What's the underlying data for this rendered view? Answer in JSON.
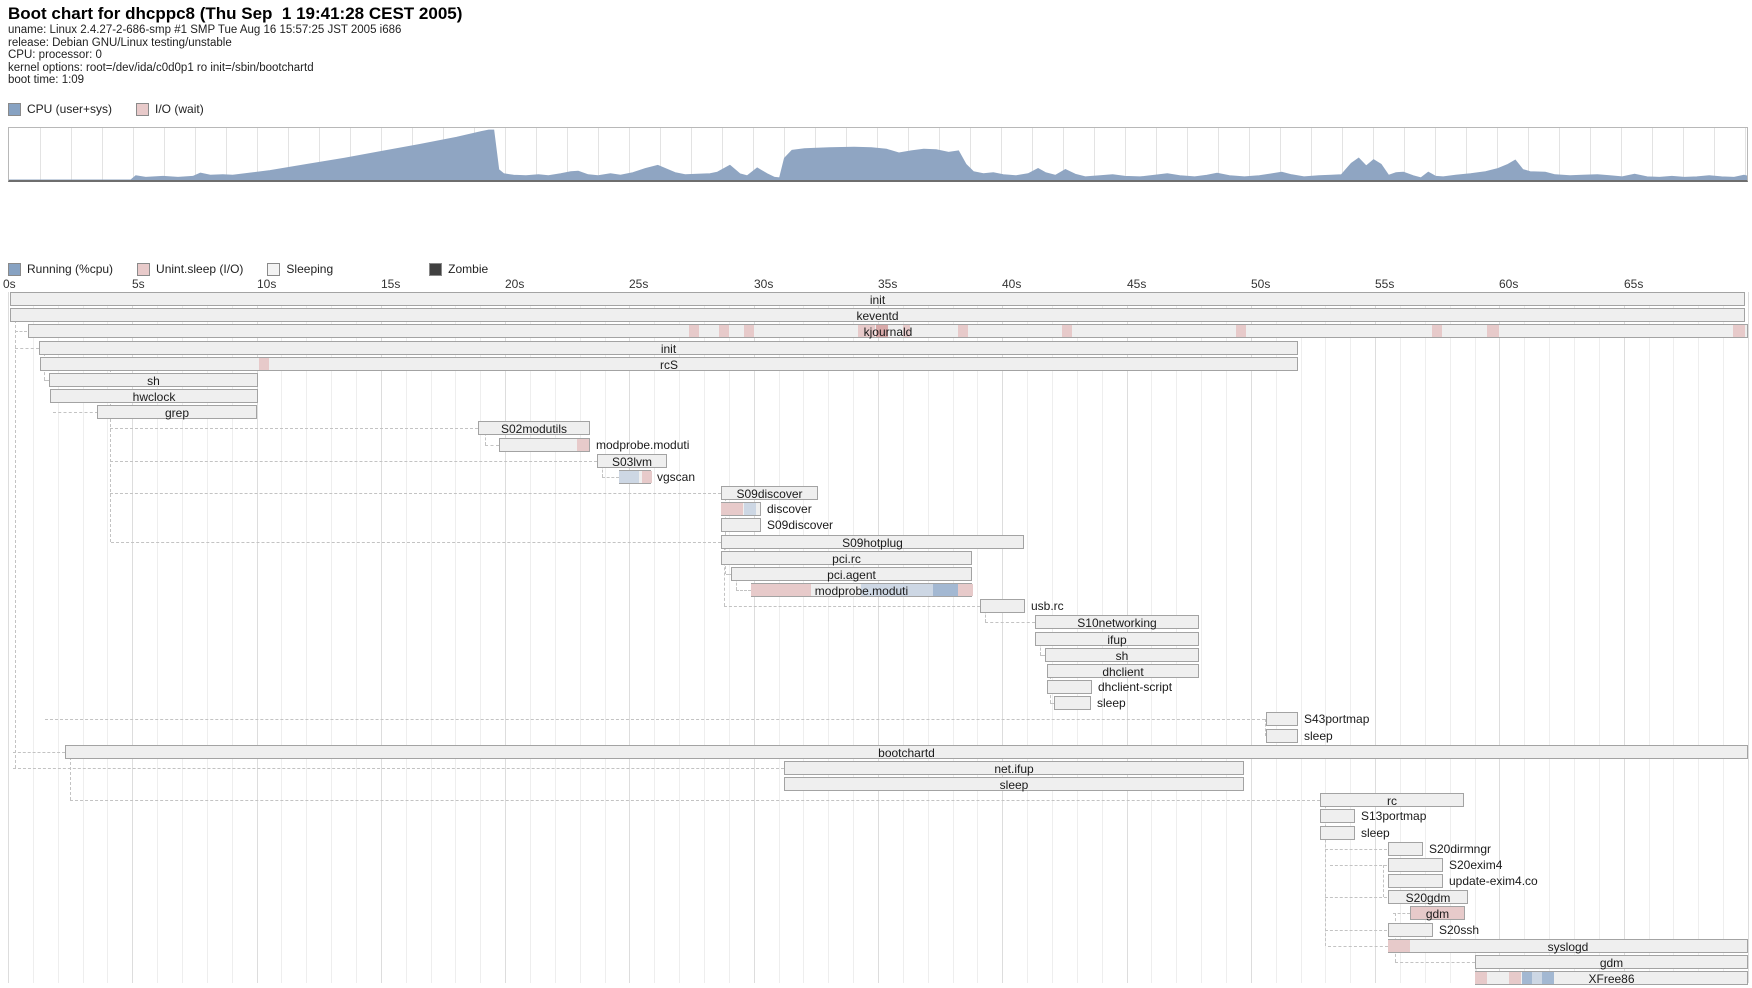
{
  "header": {
    "title": "Boot chart for dhcppc8 (Thu Sep  1 19:41:28 CEST 2005)",
    "info_lines": [
      "uname: Linux 2.4.27-2-686-smp #1 SMP Tue Aug 16 15:57:25 JST 2005 i686",
      "release: Debian GNU/Linux testing/unstable",
      "CPU: processor: 0",
      "kernel options: root=/dev/ida/c0d0p1 ro init=/sbin/bootchartd",
      "boot time: 1:09"
    ]
  },
  "colors": {
    "cpu_area": "#8fa5c2",
    "io": "#e7caca",
    "io_dark": "#d8a9a9",
    "run": "#a3b8d2",
    "run_light": "#cdd7e4",
    "bar_base": "#efefef",
    "bar_border": "#a3a3a3",
    "legend_running": "#87a2c2",
    "legend_unint": "#e8caca",
    "legend_sleeping": "#f3f3f3",
    "legend_zombie": "#404040"
  },
  "chart_data": {
    "type": "area+gantt",
    "cpu": {
      "legend": [
        {
          "label": "CPU (user+sys)",
          "color_key": "legend_running"
        },
        {
          "label": "I/O (wait)",
          "color_key": "legend_unint"
        }
      ],
      "x_range_s": [
        0,
        70
      ],
      "y_range_pct": [
        0,
        100
      ],
      "points_t_pct": [
        [
          0,
          0
        ],
        [
          4.9,
          0
        ],
        [
          5.1,
          8
        ],
        [
          5.5,
          5
        ],
        [
          6.2,
          7
        ],
        [
          6.8,
          5
        ],
        [
          7.4,
          7
        ],
        [
          7.7,
          13
        ],
        [
          8.1,
          9
        ],
        [
          8.6,
          10
        ],
        [
          9,
          9
        ],
        [
          10.5,
          18
        ],
        [
          12,
          30
        ],
        [
          13.5,
          42
        ],
        [
          15,
          55
        ],
        [
          16.5,
          68
        ],
        [
          18,
          82
        ],
        [
          19,
          93
        ],
        [
          19.3,
          96
        ],
        [
          19.5,
          96
        ],
        [
          19.7,
          20
        ],
        [
          19.9,
          12
        ],
        [
          20.3,
          9
        ],
        [
          20.8,
          8
        ],
        [
          21.3,
          10
        ],
        [
          21.7,
          8
        ],
        [
          22.2,
          12
        ],
        [
          22.6,
          16
        ],
        [
          22.9,
          17
        ],
        [
          23.3,
          10
        ],
        [
          23.7,
          8
        ],
        [
          24.2,
          12
        ],
        [
          24.6,
          9
        ],
        [
          25.1,
          14
        ],
        [
          25.6,
          22
        ],
        [
          26.1,
          28
        ],
        [
          26.5,
          20
        ],
        [
          26.8,
          14
        ],
        [
          27.2,
          10
        ],
        [
          27.7,
          11
        ],
        [
          28.2,
          12
        ],
        [
          28.5,
          15
        ],
        [
          29,
          28
        ],
        [
          29.4,
          12
        ],
        [
          29.7,
          8
        ],
        [
          30.1,
          23
        ],
        [
          30.5,
          12
        ],
        [
          30.8,
          5
        ],
        [
          31,
          4
        ],
        [
          31.2,
          42
        ],
        [
          31.5,
          57
        ],
        [
          32,
          60
        ],
        [
          33,
          62
        ],
        [
          34,
          63
        ],
        [
          34.7,
          62
        ],
        [
          35.3,
          59
        ],
        [
          35.8,
          52
        ],
        [
          36.3,
          56
        ],
        [
          36.8,
          59
        ],
        [
          37.3,
          58
        ],
        [
          37.8,
          53
        ],
        [
          38.2,
          56
        ],
        [
          38.5,
          30
        ],
        [
          38.8,
          16
        ],
        [
          39.2,
          12
        ],
        [
          39.6,
          14
        ],
        [
          40,
          10
        ],
        [
          40.5,
          8
        ],
        [
          41,
          12
        ],
        [
          41.4,
          22
        ],
        [
          41.7,
          14
        ],
        [
          42.1,
          9
        ],
        [
          42.5,
          20
        ],
        [
          42.9,
          11
        ],
        [
          43.3,
          6
        ],
        [
          43.9,
          8
        ],
        [
          44.4,
          10
        ],
        [
          44.9,
          7
        ],
        [
          45.5,
          6
        ],
        [
          46.1,
          9
        ],
        [
          46.6,
          12
        ],
        [
          47.1,
          8
        ],
        [
          47.7,
          6
        ],
        [
          48.2,
          9
        ],
        [
          48.6,
          13
        ],
        [
          49.1,
          8
        ],
        [
          49.7,
          6
        ],
        [
          50.3,
          8
        ],
        [
          50.7,
          11
        ],
        [
          51.2,
          15
        ],
        [
          51.6,
          10
        ],
        [
          52.1,
          6
        ],
        [
          52.7,
          8
        ],
        [
          53.2,
          9
        ],
        [
          53.6,
          10
        ],
        [
          54,
          32
        ],
        [
          54.3,
          42
        ],
        [
          54.6,
          27
        ],
        [
          54.9,
          39
        ],
        [
          55.2,
          30
        ],
        [
          55.5,
          9
        ],
        [
          55.8,
          14
        ],
        [
          56.1,
          15
        ],
        [
          56.5,
          8
        ],
        [
          56.8,
          4
        ],
        [
          57.1,
          15
        ],
        [
          57.4,
          7
        ],
        [
          57.7,
          6
        ],
        [
          58.2,
          9
        ],
        [
          58.8,
          12
        ],
        [
          59.4,
          16
        ],
        [
          59.9,
          22
        ],
        [
          60.3,
          30
        ],
        [
          60.6,
          38
        ],
        [
          60.9,
          20
        ],
        [
          61.2,
          16
        ],
        [
          61.8,
          15
        ],
        [
          62.2,
          10
        ],
        [
          62.8,
          8
        ],
        [
          63.3,
          9
        ],
        [
          63.9,
          10
        ],
        [
          64.4,
          8
        ],
        [
          64.9,
          6
        ],
        [
          65.4,
          11
        ],
        [
          65.9,
          6
        ],
        [
          66.4,
          5
        ],
        [
          66.9,
          7
        ],
        [
          67.4,
          5
        ],
        [
          67.9,
          6
        ],
        [
          68.4,
          8
        ],
        [
          68.9,
          6
        ],
        [
          69.4,
          5
        ],
        [
          69.8,
          9
        ],
        [
          70,
          7
        ]
      ]
    },
    "gantt": {
      "legend": [
        {
          "label": "Running (%cpu)",
          "color_key": "legend_running"
        },
        {
          "label": "Unint.sleep (I/O)",
          "color_key": "legend_unint"
        },
        {
          "label": "Sleeping",
          "color_key": "legend_sleeping"
        },
        {
          "label": "Zombie",
          "color_key": "legend_zombie"
        }
      ],
      "ticks": [
        {
          "t": 0,
          "label": "0s"
        },
        {
          "t": 5,
          "label": "5s"
        },
        {
          "t": 10,
          "label": "10s"
        },
        {
          "t": 15,
          "label": "15s"
        },
        {
          "t": 20,
          "label": "20s"
        },
        {
          "t": 25,
          "label": "25s"
        },
        {
          "t": 30,
          "label": "30s"
        },
        {
          "t": 35,
          "label": "35s"
        },
        {
          "t": 40,
          "label": "40s"
        },
        {
          "t": 45,
          "label": "45s"
        },
        {
          "t": 50,
          "label": "50s"
        },
        {
          "t": 55,
          "label": "55s"
        },
        {
          "t": 60,
          "label": "60s"
        },
        {
          "t": 65,
          "label": "65s"
        }
      ],
      "rows": [
        {
          "name": "init",
          "start": 0.1,
          "end": 69.9,
          "lp": "c",
          "segs": [],
          "cf": null
        },
        {
          "name": "keventd",
          "start": 0.1,
          "end": 69.9,
          "lp": "c",
          "segs": [],
          "cf": null
        },
        {
          "name": "kjournald",
          "start": 0.8,
          "end": 70,
          "lp": "c",
          "cf": 0.3,
          "segs": [
            [
              27.4,
              27.8,
              "io"
            ],
            [
              28.6,
              29.0,
              "io"
            ],
            [
              29.6,
              30.0,
              "io"
            ],
            [
              34.2,
              34.9,
              "io"
            ],
            [
              34.9,
              35.4,
              "io_dark"
            ],
            [
              36.0,
              36.3,
              "io"
            ],
            [
              38.2,
              38.6,
              "io"
            ],
            [
              42.4,
              42.8,
              "io"
            ],
            [
              49.4,
              49.8,
              "io"
            ],
            [
              57.3,
              57.7,
              "io"
            ],
            [
              59.5,
              60.0,
              "io"
            ],
            [
              69.4,
              69.9,
              "io"
            ]
          ]
        },
        {
          "name": "init",
          "start": 1.25,
          "end": 51.9,
          "lp": "c",
          "segs": [],
          "cf": 0.3
        },
        {
          "name": "rcS",
          "start": 1.3,
          "end": 51.9,
          "lp": "c",
          "segs": [
            [
              10.1,
              10.5,
              "io"
            ]
          ],
          "cf": null
        },
        {
          "name": "sh",
          "start": 1.65,
          "end": 10.05,
          "lp": "c",
          "segs": [],
          "cf": 1.45
        },
        {
          "name": "hwclock",
          "start": 1.7,
          "end": 10.05,
          "lp": "c",
          "segs": [],
          "cf": null
        },
        {
          "name": "grep",
          "start": 3.6,
          "end": 10.05,
          "lp": "c",
          "segs": [],
          "cf": 1.8
        },
        {
          "name": "S02modutils",
          "start": 18.9,
          "end": 23.4,
          "lp": "c",
          "segs": [],
          "cf": 4.1
        },
        {
          "name": "modprobe.moduti",
          "start": 19.75,
          "end": 23.4,
          "lp": "r",
          "segs": [
            [
              22.9,
              23.4,
              "io"
            ]
          ],
          "cf": 19.2
        },
        {
          "name": "S03lvm",
          "start": 23.7,
          "end": 26.5,
          "lp": "c",
          "segs": [],
          "cf": 4.1
        },
        {
          "name": "vgscan",
          "start": 24.6,
          "end": 25.9,
          "lp": "r",
          "segs": [
            [
              24.6,
              25.4,
              "run_light"
            ],
            [
              25.5,
              25.9,
              "io"
            ]
          ],
          "cf": 23.9
        },
        {
          "name": "S09discover",
          "start": 28.7,
          "end": 32.6,
          "lp": "c",
          "segs": [],
          "cf": 4.1
        },
        {
          "name": "discover",
          "start": 28.7,
          "end": 30.3,
          "lp": "r",
          "segs": [
            [
              28.7,
              29.6,
              "io"
            ],
            [
              29.6,
              30.1,
              "run_light"
            ]
          ],
          "cf": null
        },
        {
          "name": "S09discover",
          "start": 28.7,
          "end": 30.3,
          "lp": "r",
          "segs": [],
          "cf": null
        },
        {
          "name": "S09hotplug",
          "start": 28.7,
          "end": 40.9,
          "lp": "c",
          "segs": [],
          "cf": 4.15
        },
        {
          "name": "pci.rc",
          "start": 28.7,
          "end": 38.8,
          "lp": "c",
          "segs": [],
          "cf": null
        },
        {
          "name": "pci.agent",
          "start": 29.1,
          "end": 38.8,
          "lp": "c",
          "segs": [],
          "cf": 28.9
        },
        {
          "name": "modprobe.moduti",
          "start": 29.9,
          "end": 38.8,
          "lp": "c",
          "segs": [
            [
              29.9,
              32.3,
              "io"
            ],
            [
              34.3,
              37.2,
              "run_light"
            ],
            [
              37.2,
              38.2,
              "run"
            ],
            [
              38.2,
              38.8,
              "io"
            ]
          ],
          "cf": 29.3
        },
        {
          "name": "usb.rc",
          "start": 39.1,
          "end": 40.9,
          "lp": "r",
          "segs": [],
          "cf": 28.8
        },
        {
          "name": "S10networking",
          "start": 41.3,
          "end": 47.9,
          "lp": "c",
          "segs": [],
          "cf": 39.3
        },
        {
          "name": "ifup",
          "start": 41.3,
          "end": 47.9,
          "lp": "c",
          "segs": [],
          "cf": null
        },
        {
          "name": "sh",
          "start": 41.7,
          "end": 47.9,
          "lp": "c",
          "segs": [],
          "cf": 41.5
        },
        {
          "name": "dhclient",
          "start": 41.8,
          "end": 47.9,
          "lp": "c",
          "segs": [],
          "cf": null
        },
        {
          "name": "dhclient-script",
          "start": 41.8,
          "end": 43.6,
          "lp": "r",
          "segs": [],
          "cf": null
        },
        {
          "name": "sleep",
          "start": 42.1,
          "end": 43.6,
          "lp": "r",
          "segs": [],
          "cf": 41.9
        },
        {
          "name": "S43portmap",
          "start": 50.6,
          "end": 51.9,
          "lp": "r",
          "segs": [],
          "cf": 1.5
        },
        {
          "name": "sleep",
          "start": 50.6,
          "end": 51.9,
          "lp": "r",
          "segs": [],
          "cf": null
        },
        {
          "name": "bootchartd",
          "start": 2.3,
          "end": 70,
          "lp": "c",
          "segs": [],
          "cf": 0.2
        },
        {
          "name": "net.ifup",
          "start": 31.2,
          "end": 49.7,
          "lp": "c",
          "segs": [],
          "cf": 0.2
        },
        {
          "name": "sleep",
          "start": 31.2,
          "end": 49.7,
          "lp": "c",
          "segs": [],
          "cf": null
        },
        {
          "name": "rc",
          "start": 52.8,
          "end": 58.6,
          "lp": "c",
          "segs": [],
          "cf": 2.5
        },
        {
          "name": "S13portmap",
          "start": 52.8,
          "end": 54.2,
          "lp": "r",
          "segs": [],
          "cf": null
        },
        {
          "name": "sleep",
          "start": 52.8,
          "end": 54.2,
          "lp": "r",
          "segs": [],
          "cf": null
        },
        {
          "name": "S20dirmngr",
          "start": 55.5,
          "end": 56.9,
          "lp": "r",
          "segs": [],
          "cf": 53.0
        },
        {
          "name": "S20exim4",
          "start": 55.5,
          "end": 57.7,
          "lp": "r",
          "segs": [],
          "cf": 53.2
        },
        {
          "name": "update-exim4.co",
          "start": 55.5,
          "end": 57.7,
          "lp": "r",
          "segs": [],
          "cf": null
        },
        {
          "name": "S20gdm",
          "start": 55.5,
          "end": 58.7,
          "lp": "c",
          "segs": [],
          "cf": 53.0
        },
        {
          "name": "gdm",
          "start": 56.4,
          "end": 58.6,
          "lp": "c",
          "segs": [],
          "cf": 55.7,
          "fill": "io"
        },
        {
          "name": "S20ssh",
          "start": 55.5,
          "end": 57.3,
          "lp": "r",
          "segs": [],
          "cf": 53.0
        },
        {
          "name": "syslogd",
          "start": 55.5,
          "end": 70,
          "lp": "c",
          "segs": [
            [
              55.5,
              56.4,
              "io"
            ]
          ],
          "cf": 53.1
        },
        {
          "name": "gdm",
          "start": 59.0,
          "end": 70,
          "lp": "c",
          "segs": [],
          "cf": 55.8
        },
        {
          "name": "XFree86",
          "start": 59.0,
          "end": 70,
          "lp": "c",
          "segs": [
            [
              59.0,
              59.5,
              "io"
            ],
            [
              60.4,
              60.9,
              "io"
            ],
            [
              60.9,
              61.3,
              "run"
            ],
            [
              61.3,
              61.7,
              "run_light"
            ],
            [
              61.7,
              62.2,
              "run"
            ]
          ],
          "cf": null
        }
      ],
      "vlines": [
        [
          0.3,
          2,
          30
        ],
        [
          1.45,
          4,
          6
        ],
        [
          4.1,
          5,
          16
        ],
        [
          19.2,
          9,
          10
        ],
        [
          23.9,
          11,
          12
        ],
        [
          28.85,
          13,
          18
        ],
        [
          28.8,
          16,
          20
        ],
        [
          29.3,
          18,
          19
        ],
        [
          39.3,
          20,
          21
        ],
        [
          41.5,
          22,
          23
        ],
        [
          41.9,
          24,
          26
        ],
        [
          50.55,
          27,
          28
        ],
        [
          2.5,
          29,
          32
        ],
        [
          53.0,
          32,
          41
        ],
        [
          55.3,
          36,
          38
        ],
        [
          55.8,
          39,
          42
        ],
        [
          59.05,
          42,
          43
        ]
      ]
    }
  }
}
